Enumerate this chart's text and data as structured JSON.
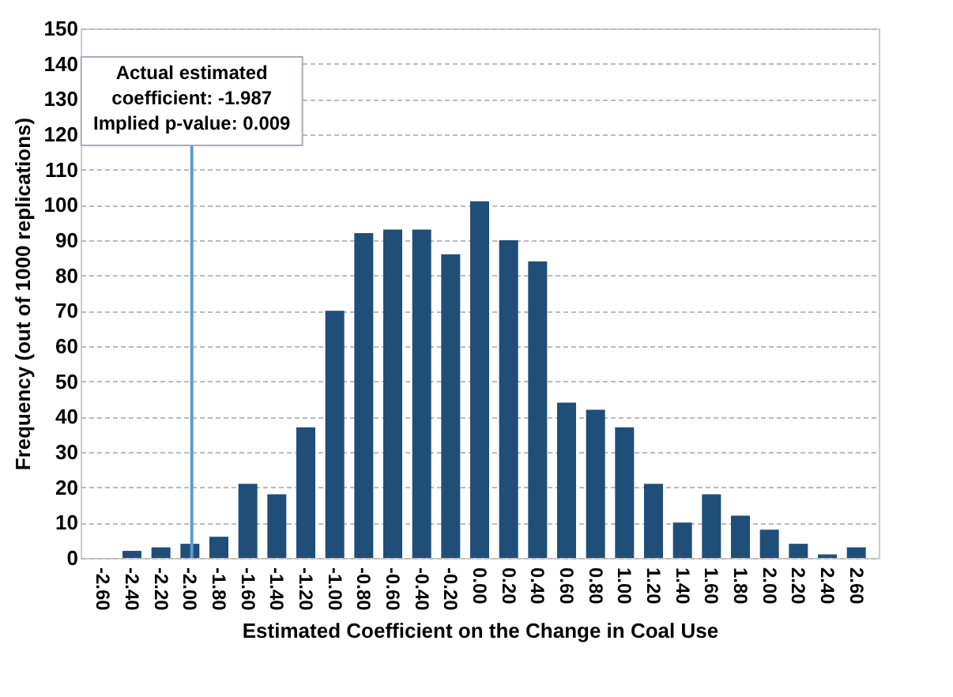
{
  "chart_data": {
    "type": "bar",
    "xlabel": "Estimated Coefficient on the Change in Coal Use",
    "ylabel": "Frequency (out of 1000 replications)",
    "x": [
      -2.6,
      -2.4,
      -2.2,
      -2.0,
      -1.8,
      -1.6,
      -1.4,
      -1.2,
      -1.0,
      -0.8,
      -0.6,
      -0.4,
      -0.2,
      0.0,
      0.2,
      0.4,
      0.6,
      0.8,
      1.0,
      1.2,
      1.4,
      1.6,
      1.8,
      2.0,
      2.2,
      2.4,
      2.6
    ],
    "values": [
      0,
      2,
      3,
      4,
      6,
      21,
      18,
      37,
      70,
      92,
      93,
      93,
      86,
      101,
      90,
      84,
      44,
      42,
      37,
      21,
      10,
      18,
      12,
      8,
      4,
      1,
      3
    ],
    "color": "#1f4e79",
    "xlim": [
      -2.7,
      2.7
    ],
    "xticks": [
      {
        "value": -2.6,
        "label": "-2.60"
      },
      {
        "value": -2.4,
        "label": "-2.40"
      },
      {
        "value": -2.2,
        "label": "-2.20"
      },
      {
        "value": -2.0,
        "label": "-2.00"
      },
      {
        "value": -1.8,
        "label": "-1.80"
      },
      {
        "value": -1.6,
        "label": "-1.60"
      },
      {
        "value": -1.4,
        "label": "-1.40"
      },
      {
        "value": -1.2,
        "label": "-1.20"
      },
      {
        "value": -1.0,
        "label": "-1.00"
      },
      {
        "value": -0.8,
        "label": "-0.80"
      },
      {
        "value": -0.6,
        "label": "-0.60"
      },
      {
        "value": -0.4,
        "label": "-0.40"
      },
      {
        "value": -0.2,
        "label": "-0.20"
      },
      {
        "value": 0,
        "label": "0.00"
      },
      {
        "value": 0.2,
        "label": "0.20"
      },
      {
        "value": 0.4,
        "label": "0.40"
      },
      {
        "value": 0.6,
        "label": "0.60"
      },
      {
        "value": 0.8,
        "label": "0.80"
      },
      {
        "value": 1.0,
        "label": "1.00"
      },
      {
        "value": 1.2,
        "label": "1.20"
      },
      {
        "value": 1.4,
        "label": "1.40"
      },
      {
        "value": 1.6,
        "label": "1.60"
      },
      {
        "value": 1.8,
        "label": "1.80"
      },
      {
        "value": 2.0,
        "label": "2.00"
      },
      {
        "value": 2.2,
        "label": "2.20"
      },
      {
        "value": 2.4,
        "label": "2.40"
      },
      {
        "value": 2.6,
        "label": "2.60"
      }
    ],
    "ylim": [
      0,
      150
    ],
    "yticks": [
      0,
      10,
      20,
      30,
      40,
      50,
      60,
      70,
      80,
      90,
      100,
      110,
      120,
      130,
      140,
      150
    ],
    "grid": "y",
    "ref_lines": [
      {
        "axis": "x",
        "value": -1.987,
        "label": "Actual estimated\ncoefficient: -1.987\nImplied p-value: 0.009",
        "color": "#5b9bd5"
      }
    ]
  }
}
